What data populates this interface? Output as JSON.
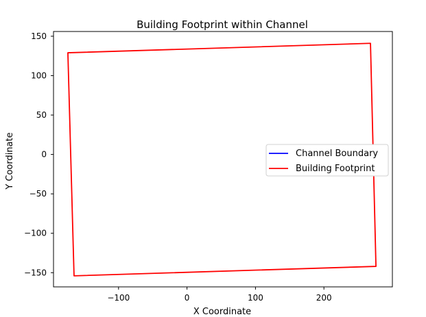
{
  "chart_data": {
    "type": "line",
    "title": "Building Footprint within Channel",
    "xlabel": "X Coordinate",
    "ylabel": "Y Coordinate",
    "xlim": [
      -195,
      300
    ],
    "ylim": [
      -168,
      156
    ],
    "xticks": [
      -100,
      0,
      100,
      200
    ],
    "yticks": [
      -150,
      -100,
      -50,
      0,
      50,
      100,
      150
    ],
    "xtick_labels": [
      "−100",
      "0",
      "100",
      "200"
    ],
    "ytick_labels": [
      "−150",
      "−100",
      "−50",
      "0",
      "50",
      "100",
      "150"
    ],
    "grid": false,
    "legend_position": "center-right",
    "series": [
      {
        "name": "Channel Boundary",
        "color": "#0000ff",
        "points": []
      },
      {
        "name": "Building Footprint",
        "color": "#ff0000",
        "points": [
          [
            -174,
            129
          ],
          [
            268,
            141
          ],
          [
            276,
            -142
          ],
          [
            -165,
            -154
          ],
          [
            -174,
            129
          ]
        ]
      }
    ]
  }
}
